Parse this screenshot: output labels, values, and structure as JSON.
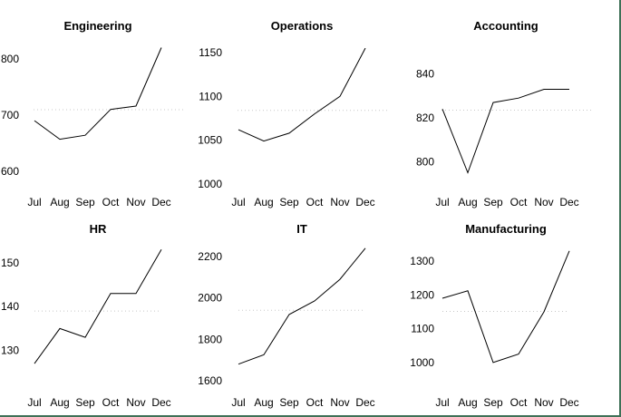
{
  "frame": {
    "background": "#ffffff",
    "border_color": "#3f7157"
  },
  "style": {
    "line_color": "#000000",
    "reference_line_color": "#c8c8c8",
    "text_color": "#000000"
  },
  "layout_hints": {
    "grid_rows": 2,
    "grid_cols": 3,
    "axes_drawn": false,
    "gridlines": false,
    "legend": false
  },
  "chart_data": [
    {
      "type": "line",
      "title": "Engineering",
      "categories": [
        "Jul",
        "Aug",
        "Sep",
        "Oct",
        "Nov",
        "Dec"
      ],
      "values": [
        690,
        657,
        664,
        710,
        716,
        820
      ],
      "yticks": [
        600,
        700,
        800
      ],
      "ylim": [
        574,
        816
      ],
      "reference_line": 709.5
    },
    {
      "type": "line",
      "title": "Operations",
      "categories": [
        "Jul",
        "Aug",
        "Sep",
        "Oct",
        "Nov",
        "Dec"
      ],
      "values": [
        1062,
        1049,
        1058,
        1080,
        1100,
        1155
      ],
      "yticks": [
        1000,
        1050,
        1100,
        1150
      ],
      "ylim": [
        998,
        1153
      ],
      "reference_line": 1084
    },
    {
      "type": "line",
      "title": "Accounting",
      "categories": [
        "Jul",
        "Aug",
        "Sep",
        "Oct",
        "Nov",
        "Dec"
      ],
      "values": [
        824,
        795,
        827,
        829,
        833,
        833
      ],
      "yticks": [
        800,
        820,
        840
      ],
      "ylim": [
        789,
        851
      ],
      "reference_line": 823.5
    },
    {
      "type": "line",
      "title": "HR",
      "categories": [
        "Jul",
        "Aug",
        "Sep",
        "Oct",
        "Nov",
        "Dec"
      ],
      "values": [
        127,
        135,
        133,
        143,
        143,
        153
      ],
      "yticks": [
        130,
        140,
        150
      ],
      "ylim": [
        120,
        151
      ],
      "reference_line": 139
    },
    {
      "type": "line",
      "title": "IT",
      "categories": [
        "Jul",
        "Aug",
        "Sep",
        "Oct",
        "Nov",
        "Dec"
      ],
      "values": [
        1680,
        1725,
        1920,
        1985,
        2090,
        2240
      ],
      "yticks": [
        1600,
        1800,
        2000,
        2200
      ],
      "ylim": [
        1534,
        2191
      ],
      "reference_line": 1940
    },
    {
      "type": "line",
      "title": "Manufacturing",
      "categories": [
        "Jul",
        "Aug",
        "Sep",
        "Oct",
        "Nov",
        "Dec"
      ],
      "values": [
        1190,
        1212,
        1000,
        1025,
        1150,
        1330
      ],
      "yticks": [
        1000,
        1100,
        1200,
        1300
      ],
      "ylim": [
        906,
        1308
      ],
      "reference_line": 1151.2
    }
  ]
}
